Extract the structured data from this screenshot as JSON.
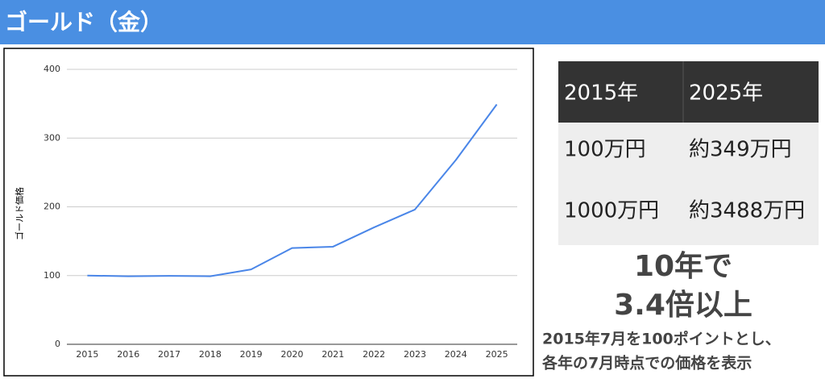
{
  "header": {
    "title": "ゴールド（金）"
  },
  "chart_data": {
    "type": "line",
    "y_label": "ゴールド価格",
    "categories": [
      "2015",
      "2016",
      "2017",
      "2018",
      "2019",
      "2020",
      "2021",
      "2022",
      "2023",
      "2024",
      "2025"
    ],
    "values": [
      100,
      99,
      99.5,
      99,
      109,
      140,
      142,
      170,
      196,
      268,
      349
    ],
    "color": "#4a86e8",
    "ylim": [
      0,
      400
    ],
    "yticks": [
      0,
      100,
      200,
      300,
      400
    ],
    "grid": true
  },
  "table": {
    "header": [
      "2015年",
      "2025年"
    ],
    "rows": [
      [
        "100万円",
        "約349万円"
      ],
      [
        "1000万円",
        "約3488万円"
      ]
    ]
  },
  "callout": [
    "10年で",
    "3.4倍以上"
  ],
  "note": [
    "2015年7月を100ポイントとし、",
    "各年の7月時点での価格を表示"
  ]
}
